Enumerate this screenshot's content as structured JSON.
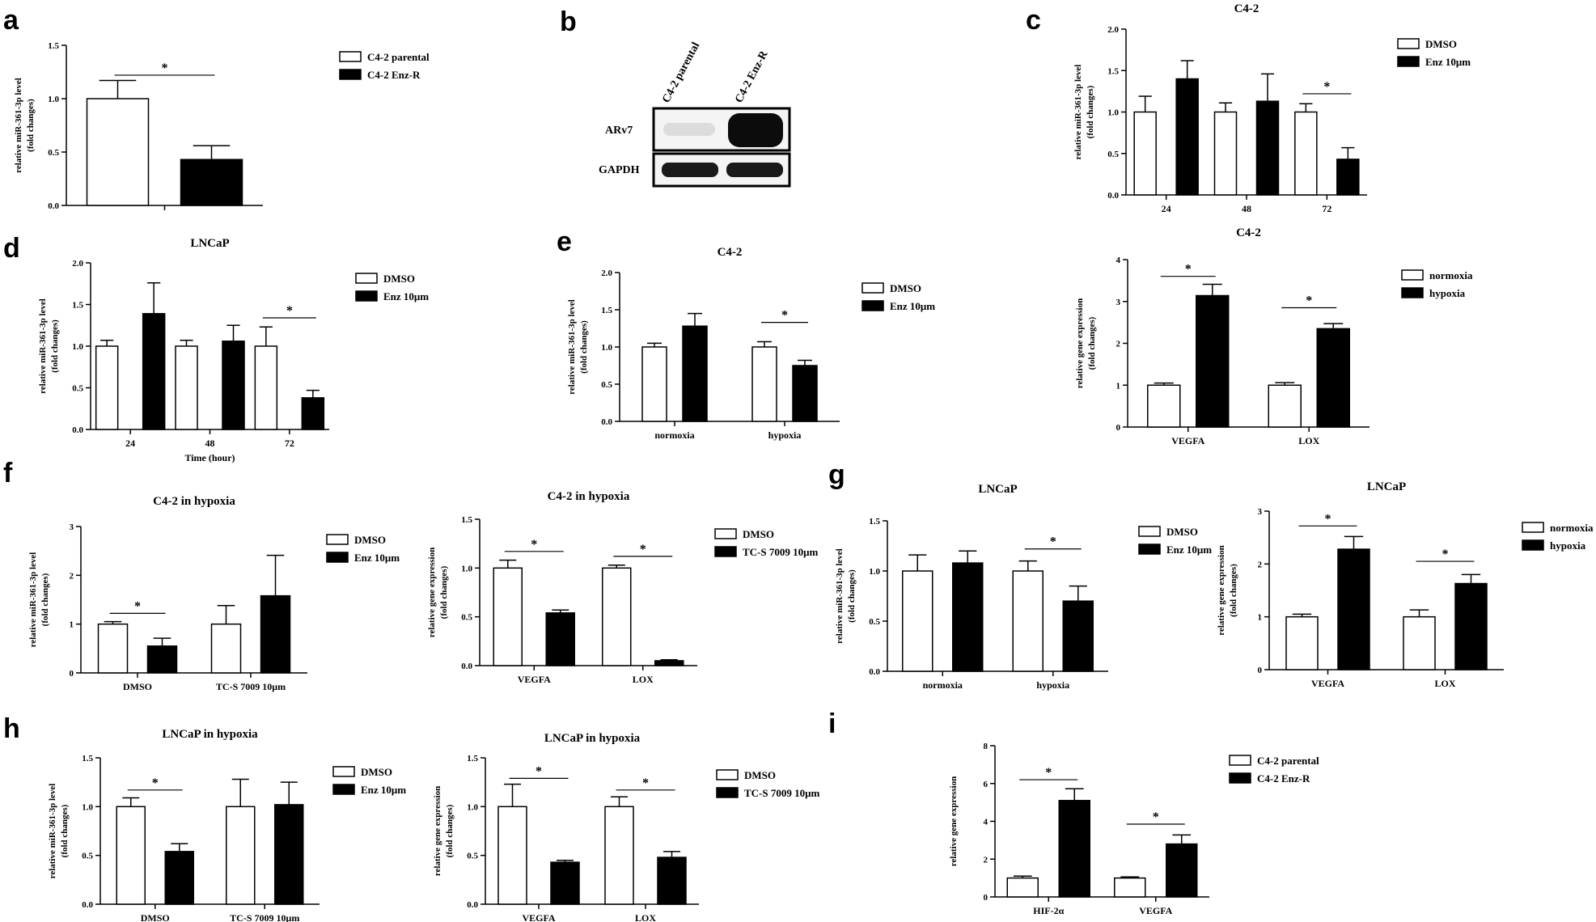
{
  "panel_letters": [
    "a",
    "b",
    "c",
    "d",
    "e",
    "f",
    "g",
    "h",
    "i"
  ],
  "blot": {
    "lanes": [
      "C4-2 parental",
      "C4-2 Enz-R"
    ],
    "rows": [
      "ARv7",
      "GAPDH"
    ]
  },
  "chart_data": [
    {
      "id": "a",
      "type": "bar",
      "title": "",
      "xlabel": "",
      "ylabel": "relative miR-361-3p level\n(fold changes)",
      "ylim": [
        0,
        1.5
      ],
      "yticks": [
        "0.0",
        "0.5",
        "1.0",
        "1.5"
      ],
      "categories": [
        ""
      ],
      "series": [
        {
          "name": "C4-2 parental",
          "color": "#ffffff",
          "values": [
            1.0
          ],
          "errors": [
            0.17
          ]
        },
        {
          "name": "C4-2 Enz-R",
          "color": "#000000",
          "values": [
            0.43
          ],
          "errors": [
            0.13
          ]
        }
      ],
      "sig": [
        {
          "from": [
            0,
            0
          ],
          "to": [
            0,
            1
          ],
          "y": 1.22,
          "label": "*"
        }
      ],
      "legend": "top-right"
    },
    {
      "id": "c",
      "type": "bar",
      "title": "C4-2",
      "xlabel": "",
      "ylabel": "relative miR-361-3p level\n(fold changes)",
      "ylim": [
        0,
        2.0
      ],
      "yticks": [
        "0.0",
        "0.5",
        "1.0",
        "1.5",
        "2.0"
      ],
      "categories": [
        "24",
        "48",
        "72"
      ],
      "series": [
        {
          "name": "DMSO",
          "color": "#ffffff",
          "values": [
            1.0,
            1.0,
            1.0
          ],
          "errors": [
            0.19,
            0.11,
            0.1
          ]
        },
        {
          "name": "Enz 10μm",
          "color": "#000000",
          "values": [
            1.4,
            1.13,
            0.43
          ],
          "errors": [
            0.22,
            0.33,
            0.14
          ]
        }
      ],
      "sig": [
        {
          "from": [
            2,
            0
          ],
          "to": [
            2,
            1
          ],
          "y": 1.22,
          "label": "*"
        }
      ],
      "legend": "top-right"
    },
    {
      "id": "d",
      "type": "bar",
      "title": "LNCaP",
      "xlabel": "Time (hour)",
      "ylabel": "relative miR-361-3p level\n(fold changes)",
      "ylim": [
        0,
        2.0
      ],
      "yticks": [
        "0.0",
        "0.5",
        "1.0",
        "1.5",
        "2.0"
      ],
      "categories": [
        "24",
        "48",
        "72"
      ],
      "series": [
        {
          "name": "DMSO",
          "color": "#ffffff",
          "values": [
            1.0,
            1.0,
            1.0
          ],
          "errors": [
            0.07,
            0.07,
            0.23
          ]
        },
        {
          "name": "Enz 10μm",
          "color": "#000000",
          "values": [
            1.39,
            1.06,
            0.38
          ],
          "errors": [
            0.37,
            0.19,
            0.09
          ]
        }
      ],
      "sig": [
        {
          "from": [
            2,
            0
          ],
          "to": [
            2,
            1
          ],
          "y": 1.34,
          "label": "*"
        }
      ],
      "legend": "top-right"
    },
    {
      "id": "e1",
      "type": "bar",
      "title": "C4-2",
      "xlabel": "",
      "ylabel": "relative miR-361-3p level\n(fold changes)",
      "ylim": [
        0,
        2.0
      ],
      "yticks": [
        "0.0",
        "0.5",
        "1.0",
        "1.5",
        "2.0"
      ],
      "categories": [
        "normoxia",
        "hypoxia"
      ],
      "series": [
        {
          "name": "DMSO",
          "color": "#ffffff",
          "values": [
            1.0,
            1.0
          ],
          "errors": [
            0.05,
            0.07
          ]
        },
        {
          "name": "Enz 10μm",
          "color": "#000000",
          "values": [
            1.28,
            0.75
          ],
          "errors": [
            0.17,
            0.07
          ]
        }
      ],
      "sig": [
        {
          "from": [
            1,
            0
          ],
          "to": [
            1,
            1
          ],
          "y": 1.33,
          "label": "*"
        }
      ],
      "legend": "top-right"
    },
    {
      "id": "e2",
      "type": "bar",
      "title": "C4-2",
      "xlabel": "",
      "ylabel": "relative gene expression\n(fold changes)",
      "ylim": [
        0,
        4
      ],
      "yticks": [
        "0",
        "1",
        "2",
        "3",
        "4"
      ],
      "categories": [
        "VEGFA",
        "LOX"
      ],
      "series": [
        {
          "name": "normoxia",
          "color": "#ffffff",
          "values": [
            1.0,
            1.0
          ],
          "errors": [
            0.05,
            0.06
          ]
        },
        {
          "name": "hypoxia",
          "color": "#000000",
          "values": [
            3.14,
            2.35
          ],
          "errors": [
            0.27,
            0.12
          ]
        }
      ],
      "sig": [
        {
          "from": [
            0,
            0
          ],
          "to": [
            0,
            1
          ],
          "y": 3.6,
          "label": "*"
        },
        {
          "from": [
            1,
            0
          ],
          "to": [
            1,
            1
          ],
          "y": 2.85,
          "label": "*"
        }
      ],
      "legend": "top-right"
    },
    {
      "id": "f1",
      "type": "bar",
      "title": "C4-2 in hypoxia",
      "xlabel": "",
      "ylabel": "relative miR-361-3p level\n(fold changes)",
      "ylim": [
        0,
        3
      ],
      "yticks": [
        "0",
        "1",
        "2",
        "3"
      ],
      "categories": [
        "DMSO",
        "TC-S 7009 10μm"
      ],
      "series": [
        {
          "name": "DMSO",
          "color": "#ffffff",
          "values": [
            1.0,
            1.0
          ],
          "errors": [
            0.05,
            0.38
          ]
        },
        {
          "name": "Enz 10μm",
          "color": "#000000",
          "values": [
            0.55,
            1.58
          ],
          "errors": [
            0.16,
            0.83
          ]
        }
      ],
      "sig": [
        {
          "from": [
            0,
            0
          ],
          "to": [
            0,
            1
          ],
          "y": 1.22,
          "label": "*"
        }
      ],
      "legend": "top-right"
    },
    {
      "id": "f2",
      "type": "bar",
      "title": "C4-2 in hypoxia",
      "xlabel": "",
      "ylabel": "relative gene expression\n(fold changes)",
      "ylim": [
        0,
        1.5
      ],
      "yticks": [
        "0.0",
        "0.5",
        "1.0",
        "1.5"
      ],
      "categories": [
        "VEGFA",
        "LOX"
      ],
      "series": [
        {
          "name": "DMSO",
          "color": "#ffffff",
          "values": [
            1.0,
            1.0
          ],
          "errors": [
            0.08,
            0.03
          ]
        },
        {
          "name": "TC-S 7009 10μm",
          "color": "#000000",
          "values": [
            0.54,
            0.05
          ],
          "errors": [
            0.03,
            0.01
          ]
        }
      ],
      "sig": [
        {
          "from": [
            0,
            0
          ],
          "to": [
            0,
            1
          ],
          "y": 1.17,
          "label": "*"
        },
        {
          "from": [
            1,
            0
          ],
          "to": [
            1,
            1
          ],
          "y": 1.12,
          "label": "*"
        }
      ],
      "legend": "top-right"
    },
    {
      "id": "g1",
      "type": "bar",
      "title": "LNCaP",
      "xlabel": "",
      "ylabel": "relative miR-361-3p level\n(fold changes)",
      "ylim": [
        0,
        1.5
      ],
      "yticks": [
        "0.0",
        "0.5",
        "1.0",
        "1.5"
      ],
      "categories": [
        "normoxia",
        "hypoxia"
      ],
      "series": [
        {
          "name": "DMSO",
          "color": "#ffffff",
          "values": [
            1.0,
            1.0
          ],
          "errors": [
            0.16,
            0.1
          ]
        },
        {
          "name": "Enz 10μm",
          "color": "#000000",
          "values": [
            1.08,
            0.7
          ],
          "errors": [
            0.12,
            0.15
          ]
        }
      ],
      "sig": [
        {
          "from": [
            1,
            0
          ],
          "to": [
            1,
            1
          ],
          "y": 1.22,
          "label": "*"
        }
      ],
      "legend": "top-right"
    },
    {
      "id": "g2",
      "type": "bar",
      "title": "LNCaP",
      "xlabel": "",
      "ylabel": "relative gene expression\n(fold changes)",
      "ylim": [
        0,
        3
      ],
      "yticks": [
        "0",
        "1",
        "2",
        "3"
      ],
      "categories": [
        "VEGFA",
        "LOX"
      ],
      "series": [
        {
          "name": "normoxia",
          "color": "#ffffff",
          "values": [
            1.0,
            1.0
          ],
          "errors": [
            0.05,
            0.13
          ]
        },
        {
          "name": "hypoxia",
          "color": "#000000",
          "values": [
            2.28,
            1.63
          ],
          "errors": [
            0.24,
            0.17
          ]
        }
      ],
      "sig": [
        {
          "from": [
            0,
            0
          ],
          "to": [
            0,
            1
          ],
          "y": 2.72,
          "label": "*"
        },
        {
          "from": [
            1,
            0
          ],
          "to": [
            1,
            1
          ],
          "y": 2.05,
          "label": "*"
        }
      ],
      "legend": "top-right"
    },
    {
      "id": "h1",
      "type": "bar",
      "title": "LNCaP in hypoxia",
      "xlabel": "",
      "ylabel": "relative miR-361-3p level\n(fold changes)",
      "ylim": [
        0,
        1.5
      ],
      "yticks": [
        "0.0",
        "0.5",
        "1.0",
        "1.5"
      ],
      "categories": [
        "DMSO",
        "TC-S 7009 10μm"
      ],
      "series": [
        {
          "name": "DMSO",
          "color": "#ffffff",
          "values": [
            1.0,
            1.0
          ],
          "errors": [
            0.09,
            0.28
          ]
        },
        {
          "name": "Enz 10μm",
          "color": "#000000",
          "values": [
            0.54,
            1.02
          ],
          "errors": [
            0.08,
            0.23
          ]
        }
      ],
      "sig": [
        {
          "from": [
            0,
            0
          ],
          "to": [
            0,
            1
          ],
          "y": 1.17,
          "label": "*"
        }
      ],
      "legend": "top-right"
    },
    {
      "id": "h2",
      "type": "bar",
      "title": "LNCaP in hypoxia",
      "xlabel": "",
      "ylabel": "relative gene expression\n(fold changes)",
      "ylim": [
        0,
        1.5
      ],
      "yticks": [
        "0.0",
        "0.5",
        "1.0",
        "1.5"
      ],
      "categories": [
        "VEGFA",
        "LOX"
      ],
      "series": [
        {
          "name": "DMSO",
          "color": "#ffffff",
          "values": [
            1.0,
            1.0
          ],
          "errors": [
            0.23,
            0.1
          ]
        },
        {
          "name": "TC-S 7009 10μm",
          "color": "#000000",
          "values": [
            0.43,
            0.48
          ],
          "errors": [
            0.02,
            0.06
          ]
        }
      ],
      "sig": [
        {
          "from": [
            0,
            0
          ],
          "to": [
            0,
            1
          ],
          "y": 1.29,
          "label": "*"
        },
        {
          "from": [
            1,
            0
          ],
          "to": [
            1,
            1
          ],
          "y": 1.17,
          "label": "*"
        }
      ],
      "legend": "top-right"
    },
    {
      "id": "i",
      "type": "bar",
      "title": "",
      "xlabel": "",
      "ylabel": "relative gene expression",
      "ylim": [
        0,
        8
      ],
      "yticks": [
        "0",
        "2",
        "4",
        "6",
        "8"
      ],
      "categories": [
        "HIF-2α",
        "VEGFA"
      ],
      "series": [
        {
          "name": "C4-2 parental",
          "color": "#ffffff",
          "values": [
            1.0,
            1.0
          ],
          "errors": [
            0.1,
            0.06
          ]
        },
        {
          "name": "C4-2 Enz-R",
          "color": "#000000",
          "values": [
            5.1,
            2.8
          ],
          "errors": [
            0.62,
            0.48
          ]
        }
      ],
      "sig": [
        {
          "from": [
            0,
            0
          ],
          "to": [
            0,
            1
          ],
          "y": 6.2,
          "label": "*"
        },
        {
          "from": [
            1,
            0
          ],
          "to": [
            1,
            1
          ],
          "y": 3.85,
          "label": "*"
        }
      ],
      "legend": "top-right"
    }
  ]
}
